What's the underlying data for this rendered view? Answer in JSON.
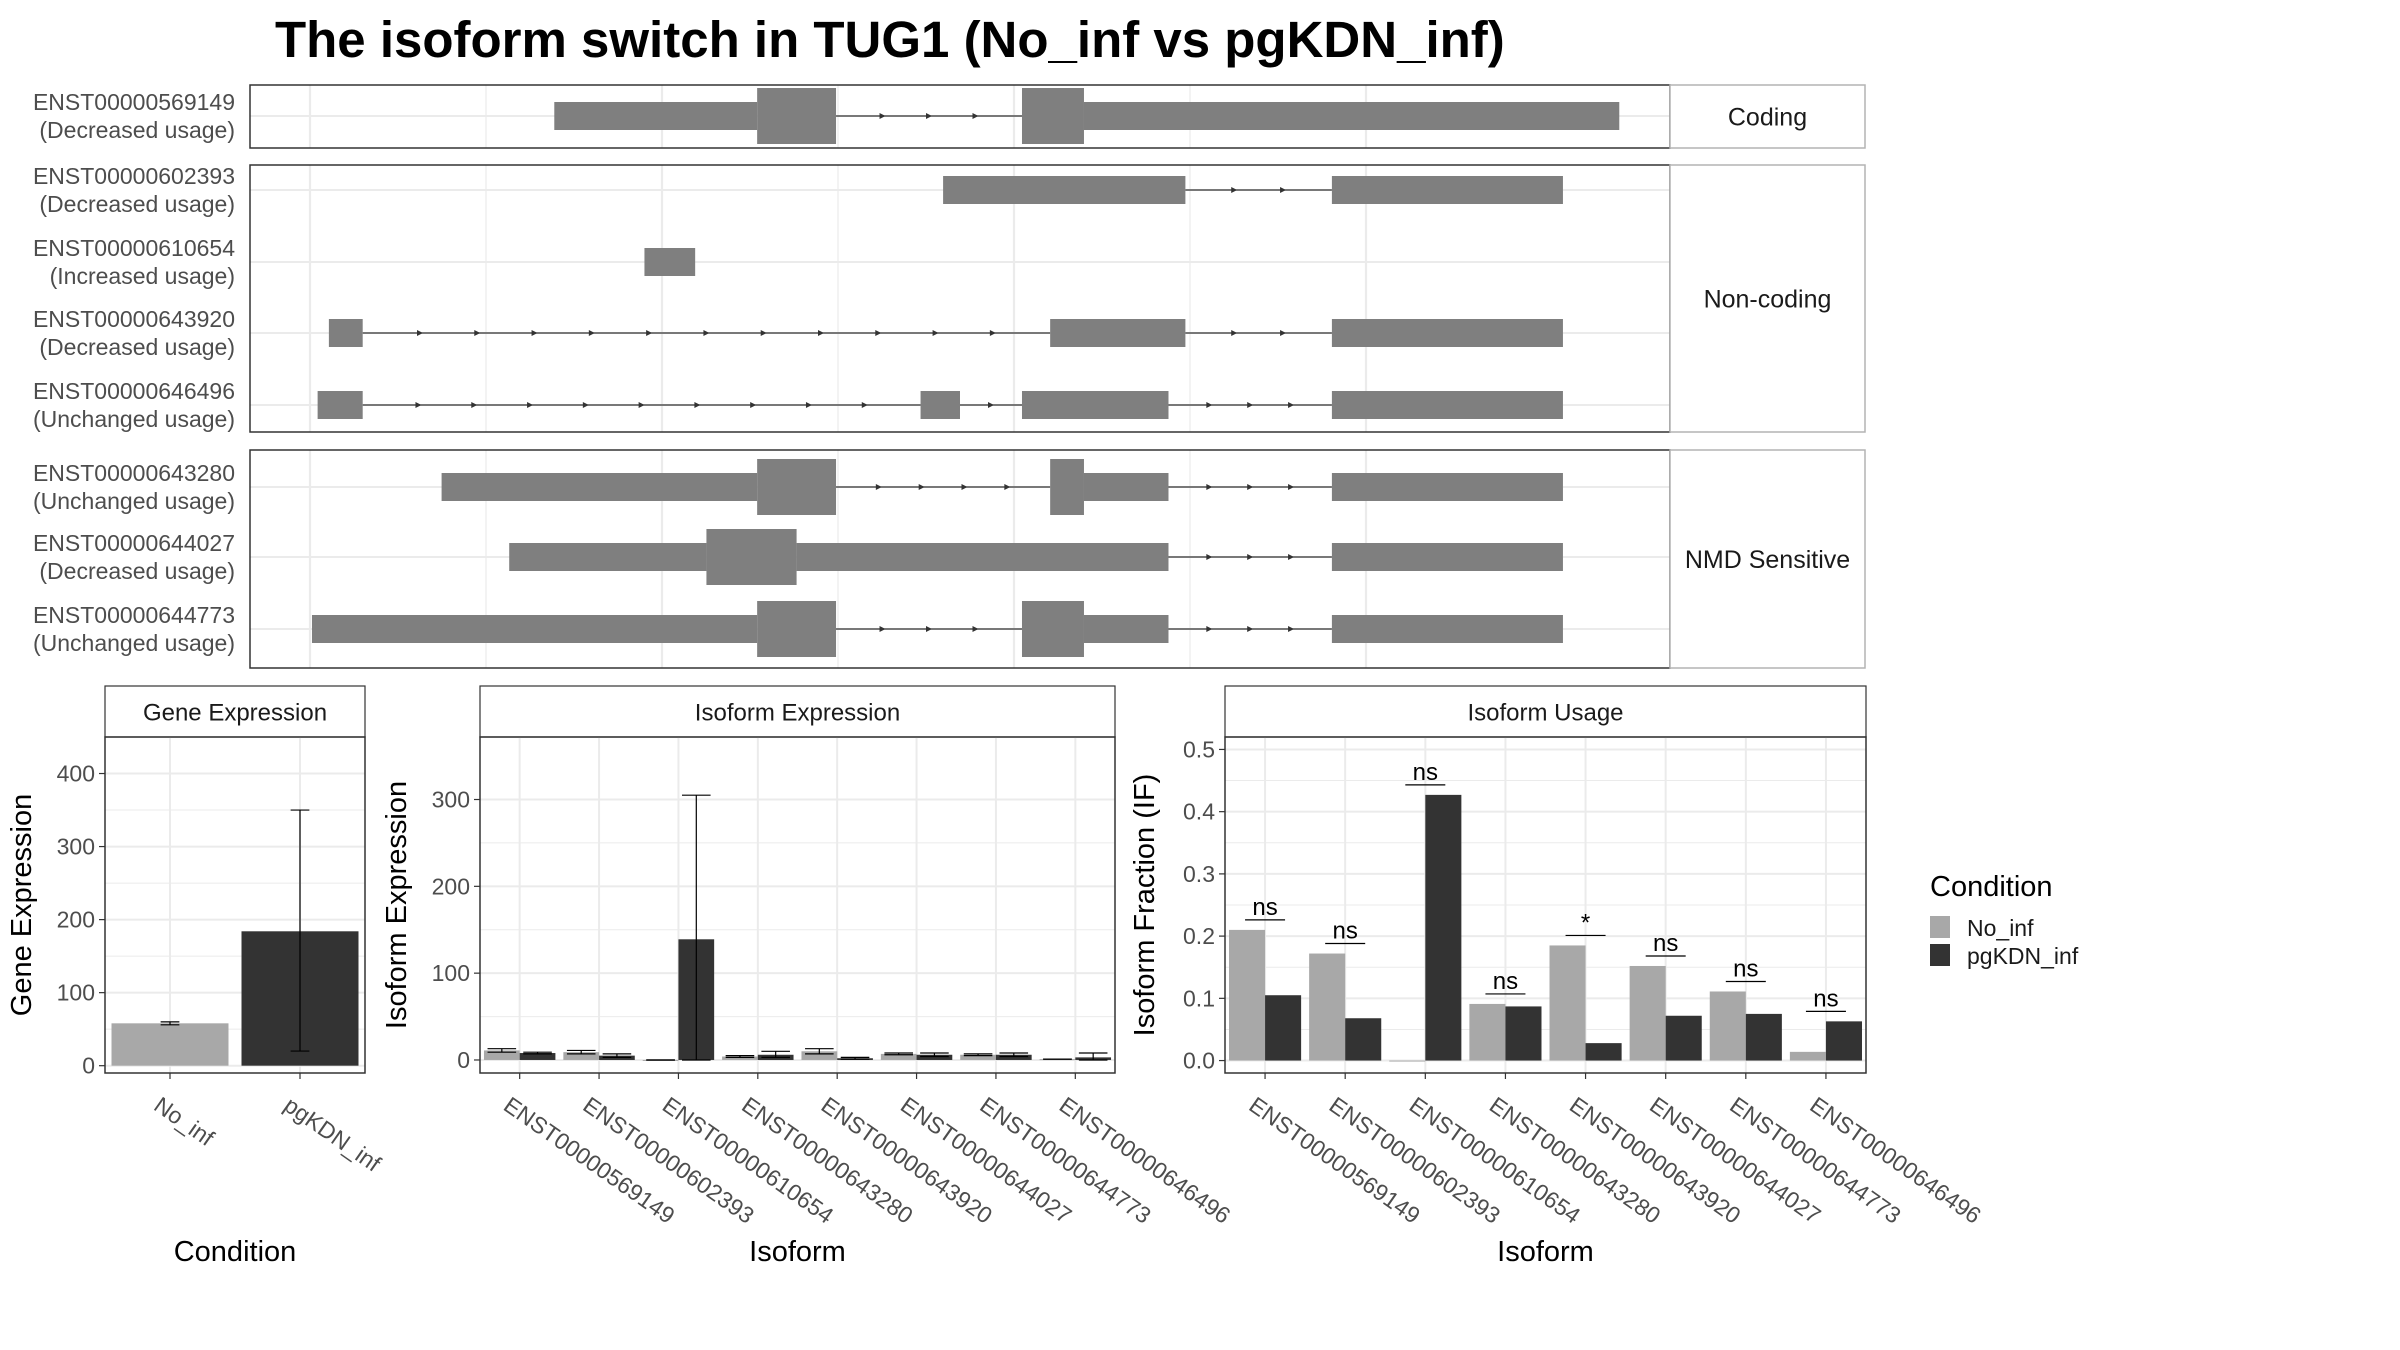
{
  "title": "The isoform switch in TUG1 (No_inf vs pgKDN_inf)",
  "colors": {
    "no_inf": "#a8a8a8",
    "pgkdn_inf": "#333333",
    "exon": "#7f7f7f",
    "grid": "#ebebeb",
    "strip_bg": "#ffffff"
  },
  "structure": {
    "x_range": [
      0,
      1000
    ],
    "panels": [
      {
        "facet": "Coding",
        "tracks": [
          {
            "id": "ENST00000569149",
            "usage": "(Decreased usage)",
            "exons": [
              [
                270,
                450,
                "thin"
              ],
              [
                450,
                520,
                "thick"
              ],
              [
                685,
                740,
                "thick"
              ],
              [
                740,
                1215,
                "thin"
              ]
            ],
            "introns": [
              [
                520,
                685
              ]
            ]
          }
        ]
      },
      {
        "facet": "Non-coding",
        "tracks": [
          {
            "id": "ENST00000602393",
            "usage": "(Decreased usage)",
            "exons": [
              [
                615,
                830,
                "thin"
              ],
              [
                960,
                1165,
                "thin"
              ]
            ],
            "introns": [
              [
                830,
                960
              ]
            ]
          },
          {
            "id": "ENST00000610654",
            "usage": "(Increased usage)",
            "exons": [
              [
                350,
                395,
                "thin"
              ]
            ],
            "introns": []
          },
          {
            "id": "ENST00000643920",
            "usage": "(Decreased usage)",
            "exons": [
              [
                70,
                100,
                "thin"
              ],
              [
                710,
                830,
                "thin"
              ],
              [
                960,
                1165,
                "thin"
              ]
            ],
            "introns": [
              [
                100,
                710
              ],
              [
                830,
                960
              ]
            ]
          },
          {
            "id": "ENST00000646496",
            "usage": "(Unchanged usage)",
            "exons": [
              [
                60,
                100,
                "thin"
              ],
              [
                595,
                630,
                "thin"
              ],
              [
                685,
                815,
                "thin"
              ],
              [
                960,
                1165,
                "thin"
              ]
            ],
            "introns": [
              [
                100,
                595
              ],
              [
                630,
                685
              ],
              [
                815,
                960
              ]
            ]
          }
        ]
      },
      {
        "facet": "NMD Sensitive",
        "tracks": [
          {
            "id": "ENST00000643280",
            "usage": "(Unchanged usage)",
            "exons": [
              [
                170,
                450,
                "thin"
              ],
              [
                450,
                520,
                "thick"
              ],
              [
                710,
                740,
                "thick"
              ],
              [
                740,
                815,
                "thin"
              ],
              [
                960,
                1165,
                "thin"
              ]
            ],
            "introns": [
              [
                520,
                710
              ],
              [
                815,
                960
              ]
            ]
          },
          {
            "id": "ENST00000644027",
            "usage": "(Decreased usage)",
            "exons": [
              [
                230,
                405,
                "thin"
              ],
              [
                405,
                485,
                "thick"
              ],
              [
                485,
                815,
                "thin"
              ],
              [
                960,
                1165,
                "thin"
              ]
            ],
            "introns": [
              [
                815,
                960
              ]
            ]
          },
          {
            "id": "ENST00000644773",
            "usage": "(Unchanged usage)",
            "exons": [
              [
                55,
                450,
                "thin"
              ],
              [
                450,
                520,
                "thick"
              ],
              [
                685,
                740,
                "thick"
              ],
              [
                740,
                815,
                "thin"
              ],
              [
                960,
                1165,
                "thin"
              ]
            ],
            "introns": [
              [
                520,
                685
              ],
              [
                815,
                960
              ]
            ]
          }
        ]
      }
    ]
  },
  "legend": {
    "title": "Condition",
    "items": [
      "No_inf",
      "pgKDN_inf"
    ]
  },
  "chart_data": [
    {
      "type": "bar",
      "strip": "Gene Expression",
      "xlabel": "Condition",
      "ylabel": "Gene Expression",
      "categories": [
        "No_inf",
        "pgKDN_inf"
      ],
      "values": [
        58,
        184
      ],
      "error": [
        [
          56,
          60
        ],
        [
          20,
          350
        ]
      ],
      "yticks": [
        0,
        100,
        200,
        300,
        400
      ],
      "ylim": [
        -10,
        450
      ]
    },
    {
      "type": "bar",
      "strip": "Isoform Expression",
      "xlabel": "Isoform",
      "ylabel": "Isoform Expression",
      "categories": [
        "ENST00000569149",
        "ENST00000602393",
        "ENST00000610654",
        "ENST00000643280",
        "ENST00000643920",
        "ENST00000644027",
        "ENST00000644773",
        "ENST00000646496"
      ],
      "series": [
        {
          "name": "No_inf",
          "values": [
            11,
            9,
            0,
            4,
            10,
            7,
            6,
            1
          ],
          "error": [
            [
              9,
              13
            ],
            [
              7,
              11
            ],
            [
              0,
              0
            ],
            [
              3,
              5
            ],
            [
              7,
              13
            ],
            [
              6,
              8
            ],
            [
              5,
              7
            ],
            [
              1,
              1
            ]
          ]
        },
        {
          "name": "pgKDN_inf",
          "values": [
            8,
            5,
            139,
            6,
            2,
            6,
            6,
            3
          ],
          "error": [
            [
              7,
              9
            ],
            [
              3,
              7
            ],
            [
              0,
              305
            ],
            [
              3,
              10
            ],
            [
              1,
              3
            ],
            [
              4,
              8
            ],
            [
              4,
              8
            ],
            [
              0,
              8
            ]
          ]
        }
      ],
      "yticks": [
        0,
        100,
        200,
        300
      ],
      "ylim": [
        -15,
        372
      ]
    },
    {
      "type": "bar",
      "strip": "Isoform Usage",
      "xlabel": "Isoform",
      "ylabel": "Isoform Fraction (IF)",
      "categories": [
        "ENST00000569149",
        "ENST00000602393",
        "ENST00000610654",
        "ENST00000643280",
        "ENST00000643920",
        "ENST00000644027",
        "ENST00000644773",
        "ENST00000646496"
      ],
      "series": [
        {
          "name": "No_inf",
          "values": [
            0.21,
            0.172,
            0.0,
            0.091,
            0.185,
            0.152,
            0.111,
            0.014
          ]
        },
        {
          "name": "pgKDN_inf",
          "values": [
            0.105,
            0.068,
            0.427,
            0.087,
            0.028,
            0.072,
            0.075,
            0.063
          ]
        }
      ],
      "significance": [
        "ns",
        "ns",
        "ns",
        "ns",
        "*",
        "ns",
        "ns",
        "ns"
      ],
      "yticks": [
        0.0,
        0.1,
        0.2,
        0.3,
        0.4,
        0.5
      ],
      "ylim": [
        -0.02,
        0.52
      ]
    }
  ]
}
